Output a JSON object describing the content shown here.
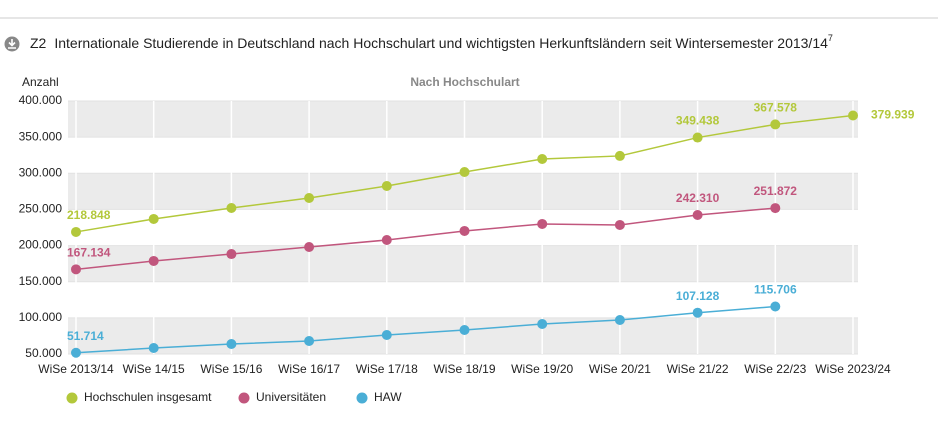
{
  "header": {
    "code": "Z2",
    "title": "Internationale Studierende in Deutschland nach Hochschulart und wichtigsten Herkunftsländern seit Wintersemester 2013/14",
    "title_sup": "7"
  },
  "chart_data": {
    "type": "line",
    "title": "Nach Hochschulart",
    "y_label": "Anzahl",
    "categories": [
      "WiSe 2013/14",
      "WiSe 14/15",
      "WiSe 15/16",
      "WiSe 16/17",
      "WiSe 17/18",
      "WiSe 18/19",
      "WiSe 19/20",
      "WiSe 20/21",
      "WiSe 21/22",
      "WiSe 22/23",
      "WiSe 2023/24"
    ],
    "series": [
      {
        "name": "Hochschulen insgesamt",
        "color": "#b3c83b",
        "values": [
          218848,
          236800,
          252000,
          265800,
          282400,
          301800,
          319800,
          324000,
          349438,
          367578,
          379939
        ],
        "value_labels": [
          "218.848",
          null,
          null,
          null,
          null,
          null,
          null,
          null,
          "349.438",
          "367.578",
          "379.939"
        ]
      },
      {
        "name": "Universitäten",
        "color": "#c1567d",
        "values": [
          167134,
          178700,
          188300,
          198000,
          207700,
          220200,
          229900,
          228500,
          242310,
          251872,
          null
        ],
        "value_labels": [
          "167.134",
          null,
          null,
          null,
          null,
          null,
          null,
          null,
          "242.310",
          "251.872",
          null
        ]
      },
      {
        "name": "HAW",
        "color": "#4aaed6",
        "values": [
          51714,
          58300,
          63800,
          68000,
          76300,
          83200,
          91500,
          97000,
          107128,
          115706,
          null
        ],
        "value_labels": [
          "51.714",
          null,
          null,
          null,
          null,
          null,
          null,
          null,
          "107.128",
          "115.706",
          null
        ]
      }
    ],
    "ylim": [
      50000,
      400000
    ],
    "yticks": [
      {
        "value": 50000,
        "label": "50.000"
      },
      {
        "value": 100000,
        "label": "100.000"
      },
      {
        "value": 150000,
        "label": "150.000"
      },
      {
        "value": 200000,
        "label": "200.000"
      },
      {
        "value": 250000,
        "label": "250.000"
      },
      {
        "value": 300000,
        "label": "300.000"
      },
      {
        "value": 350000,
        "label": "350.000"
      },
      {
        "value": 400000,
        "label": "400.000"
      }
    ],
    "grid": true
  }
}
